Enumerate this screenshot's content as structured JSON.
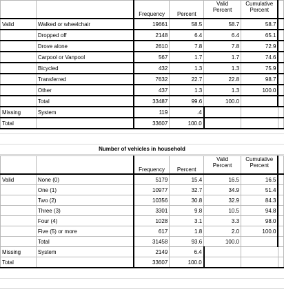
{
  "table1": {
    "headers": {
      "freq": "Frequency",
      "pct": "Percent",
      "valid_pct_1": "Valid",
      "valid_pct_2": "Percent",
      "cum_pct_1": "Cumulative",
      "cum_pct_2": "Percent"
    },
    "valid_group": "Valid",
    "rows": [
      {
        "label": "Walked or wheelchair",
        "freq": "19661",
        "pct": "58.5",
        "valid": "58.7",
        "cum": "58.7"
      },
      {
        "label": "Dropped off",
        "freq": "2148",
        "pct": "6.4",
        "valid": "6.4",
        "cum": "65.1"
      },
      {
        "label": "Drove alone",
        "freq": "2610",
        "pct": "7.8",
        "valid": "7.8",
        "cum": "72.9"
      },
      {
        "label": "Carpool or Vanpool",
        "freq": "567",
        "pct": "1.7",
        "valid": "1.7",
        "cum": "74.6"
      },
      {
        "label": "Bicycled",
        "freq": "432",
        "pct": "1.3",
        "valid": "1.3",
        "cum": "75.9"
      },
      {
        "label": "Transferred",
        "freq": "7632",
        "pct": "22.7",
        "valid": "22.8",
        "cum": "98.7"
      },
      {
        "label": "Other",
        "freq": "437",
        "pct": "1.3",
        "valid": "1.3",
        "cum": "100.0"
      },
      {
        "label": "Total",
        "freq": "33487",
        "pct": "99.6",
        "valid": "100.0",
        "cum": ""
      }
    ],
    "missing": {
      "group": "Missing",
      "label": "System",
      "freq": "119",
      "pct": ".4"
    },
    "total": {
      "group": "Total",
      "freq": "33607",
      "pct": "100.0"
    }
  },
  "table2": {
    "title": "Number of vehicles in household",
    "headers": {
      "freq": "Frequency",
      "pct": "Percent",
      "valid_pct_1": "Valid",
      "valid_pct_2": "Percent",
      "cum_pct_1": "Cumulative",
      "cum_pct_2": "Percent"
    },
    "valid_group": "Valid",
    "rows": [
      {
        "label": "None (0)",
        "freq": "5179",
        "pct": "15.4",
        "valid": "16.5",
        "cum": "16.5"
      },
      {
        "label": "One (1)",
        "freq": "10977",
        "pct": "32.7",
        "valid": "34.9",
        "cum": "51.4"
      },
      {
        "label": "Two (2)",
        "freq": "10356",
        "pct": "30.8",
        "valid": "32.9",
        "cum": "84.3"
      },
      {
        "label": "Three (3)",
        "freq": "3301",
        "pct": "9.8",
        "valid": "10.5",
        "cum": "94.8"
      },
      {
        "label": "Four (4)",
        "freq": "1028",
        "pct": "3.1",
        "valid": "3.3",
        "cum": "98.0"
      },
      {
        "label": "Five (5) or more",
        "freq": "617",
        "pct": "1.8",
        "valid": "2.0",
        "cum": "100.0"
      },
      {
        "label": "Total",
        "freq": "31458",
        "pct": "93.6",
        "valid": "100.0",
        "cum": ""
      }
    ],
    "missing": {
      "group": "Missing",
      "label": "System",
      "freq": "2149",
      "pct": "6.4"
    },
    "total": {
      "group": "Total",
      "freq": "33607",
      "pct": "100.0"
    }
  }
}
